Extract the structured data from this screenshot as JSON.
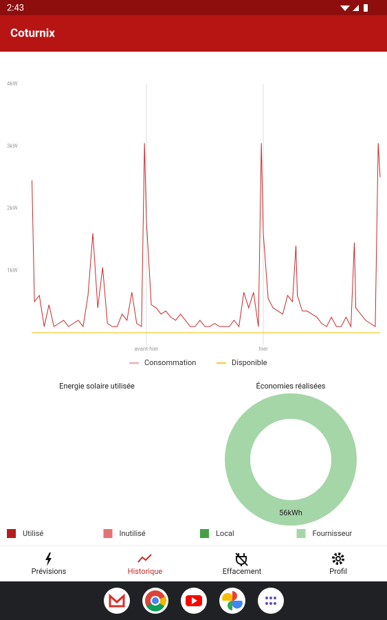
{
  "status_bar": {
    "time": "2:43"
  },
  "app_bar": {
    "title": "Coturnix"
  },
  "chart_data": [
    {
      "type": "line",
      "x": [
        0.5,
        1,
        2,
        3,
        4,
        5,
        6,
        7,
        8,
        9,
        10,
        11,
        12,
        13,
        14,
        15,
        16,
        17,
        18,
        19,
        20,
        21,
        22,
        23,
        23.6,
        24,
        25,
        26,
        27,
        28,
        29,
        30,
        31,
        32,
        33,
        34,
        35,
        36,
        37,
        38,
        39,
        40,
        41,
        42,
        43,
        44,
        45,
        46,
        47,
        47.6,
        48,
        49,
        50,
        51,
        52,
        53,
        54,
        54.7,
        55,
        56,
        57,
        58,
        59,
        60,
        61,
        62,
        63,
        64,
        65,
        66,
        66.7,
        67,
        68,
        69,
        70,
        71,
        71.6,
        72
      ],
      "series": [
        {
          "name": "Consommation",
          "color": "#c62828",
          "values": [
            2.45,
            0.5,
            0.6,
            0.1,
            0.45,
            0.1,
            0.15,
            0.2,
            0.1,
            0.15,
            0.2,
            0.1,
            0.6,
            1.6,
            0.4,
            1.05,
            0.15,
            0.1,
            0.1,
            0.3,
            0.2,
            0.65,
            0.15,
            0.1,
            3.05,
            1.8,
            0.45,
            0.4,
            0.3,
            0.35,
            0.25,
            0.2,
            0.3,
            0.2,
            0.1,
            0.1,
            0.2,
            0.1,
            0.1,
            0.15,
            0.1,
            0.1,
            0.1,
            0.2,
            0.1,
            0.65,
            0.4,
            0.65,
            0.1,
            3.05,
            1.6,
            0.55,
            0.4,
            0.35,
            0.3,
            0.6,
            0.5,
            1.4,
            0.6,
            0.35,
            0.35,
            0.3,
            0.25,
            0.15,
            0.1,
            0.25,
            0.1,
            0.1,
            0.25,
            0.1,
            1.45,
            0.4,
            0.3,
            0.2,
            0.15,
            0.1,
            3.05,
            2.5
          ]
        },
        {
          "name": "Disponible",
          "color": "#f5d04a",
          "x": [
            0.5,
            72
          ],
          "values": [
            0,
            0
          ]
        }
      ],
      "xlim": [
        0,
        72
      ],
      "xticks": [
        {
          "value": 24,
          "label": "avant-hier"
        },
        {
          "value": 48,
          "label": "hier"
        }
      ],
      "ylim": [
        0,
        4
      ],
      "yticks": [
        {
          "value": 1,
          "label": "1kW"
        },
        {
          "value": 2,
          "label": "2kW"
        },
        {
          "value": 3,
          "label": "3kW"
        },
        {
          "value": 4,
          "label": "4kW"
        }
      ],
      "grid": "x"
    },
    {
      "type": "pie",
      "title": "Energie solaire utilisée"
    },
    {
      "type": "pie",
      "title": "Économies réalisées",
      "values": [
        56
      ],
      "value_labels": [
        "56kWh"
      ],
      "color": "#a5d6a7"
    }
  ],
  "legend": [
    {
      "name": "Utilisé",
      "color": "#b71c1c"
    },
    {
      "name": "Inutilisé",
      "color": "#e57373"
    },
    {
      "name": "Local",
      "color": "#43a047"
    },
    {
      "name": "Fournisseur",
      "color": "#a5d6a7"
    }
  ],
  "nav": [
    "Prévisions",
    "Historique",
    "Effacement",
    "Profil"
  ]
}
